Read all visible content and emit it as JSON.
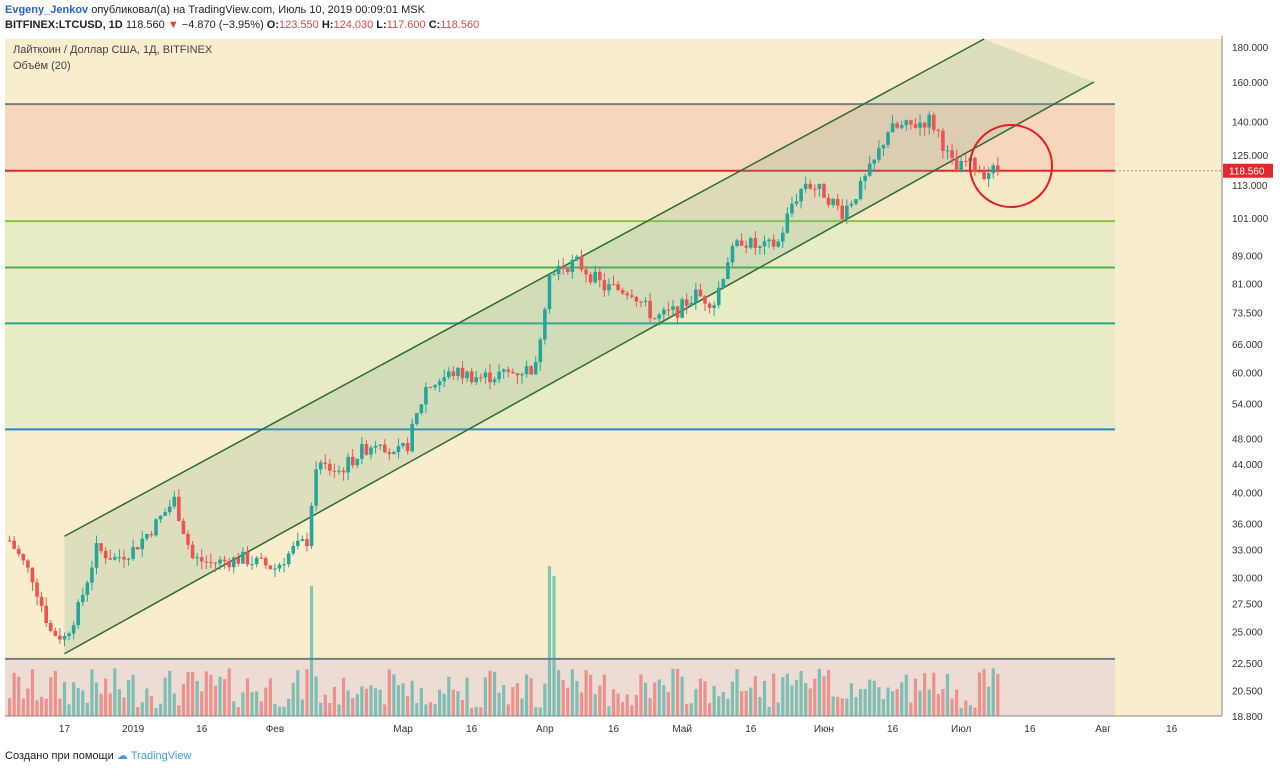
{
  "header": {
    "author": "Evgeny_Jenkov",
    "published_text": "опубликовал(а) на TradingView.com, Июль 10, 2019 00:09:01 MSK",
    "symbol_line": "BITFINEX:LTCUSD, 1D",
    "last": "118.560",
    "change": "−4.870 (−3.95%)",
    "open_label": "O:",
    "open": "123.550",
    "high_label": "H:",
    "high": "124.030",
    "low_label": "L:",
    "low": "117.600",
    "close_label": "C:",
    "close": "118.560"
  },
  "legend": {
    "title": "Лайткоин / Доллар США, 1Д, BITFINEX",
    "volume": "Объём (20)"
  },
  "footer": {
    "created_with": "Создано при помощи",
    "brand": "TradingView"
  },
  "colors": {
    "up": "#26a69a",
    "down": "#ef5350",
    "upper_zone": "#f6d7bd",
    "lower_zone": "#f8edcc",
    "channel": "#2e6b2e"
  },
  "chart_data": {
    "type": "candlestick",
    "symbol": "BITFINEX:LTCUSD",
    "timeframe": "1D",
    "scale": "log",
    "ylim": [
      18.8,
      185
    ],
    "y_ticks": [
      "180.000",
      "160.000",
      "140.000",
      "125.000",
      "113.000",
      "101.000",
      "89.000",
      "81.000",
      "73.500",
      "66.000",
      "60.000",
      "54.000",
      "48.000",
      "44.000",
      "40.000",
      "36.000",
      "33.000",
      "30.000",
      "27.500",
      "25.000",
      "22.500",
      "20.500",
      "18.800"
    ],
    "x_ticks": [
      "17",
      "2019",
      "16",
      "Фев",
      "Мар",
      "16",
      "Апр",
      "16",
      "Май",
      "16",
      "Июн",
      "16",
      "Июл",
      "16",
      "Авг",
      "16"
    ],
    "last_price_label": "118.560",
    "price_path": [
      [
        "2018-12-05",
        34
      ],
      [
        "2018-12-10",
        30
      ],
      [
        "2018-12-14",
        25
      ],
      [
        "2018-12-17",
        24.5
      ],
      [
        "2018-12-20",
        27
      ],
      [
        "2018-12-24",
        33
      ],
      [
        "2018-12-28",
        32
      ],
      [
        "2019-01-01",
        33
      ],
      [
        "2019-01-06",
        36
      ],
      [
        "2019-01-10",
        39
      ],
      [
        "2019-01-14",
        32
      ],
      [
        "2019-01-18",
        31.5
      ],
      [
        "2019-01-25",
        32
      ],
      [
        "2019-02-01",
        31
      ],
      [
        "2019-02-05",
        33
      ],
      [
        "2019-02-08",
        34
      ],
      [
        "2019-02-10",
        44
      ],
      [
        "2019-02-15",
        43
      ],
      [
        "2019-02-20",
        46
      ],
      [
        "2019-02-24",
        48
      ],
      [
        "2019-02-27",
        45
      ],
      [
        "2019-03-02",
        47
      ],
      [
        "2019-03-06",
        57
      ],
      [
        "2019-03-12",
        60
      ],
      [
        "2019-03-18",
        59
      ],
      [
        "2019-03-25",
        60
      ],
      [
        "2019-03-30",
        61
      ],
      [
        "2019-04-02",
        85
      ],
      [
        "2019-04-08",
        87
      ],
      [
        "2019-04-14",
        80
      ],
      [
        "2019-04-20",
        79
      ],
      [
        "2019-04-25",
        72
      ],
      [
        "2019-04-30",
        74
      ],
      [
        "2019-05-04",
        78
      ],
      [
        "2019-05-08",
        76
      ],
      [
        "2019-05-11",
        88
      ],
      [
        "2019-05-14",
        94
      ],
      [
        "2019-05-18",
        91
      ],
      [
        "2019-05-22",
        93
      ],
      [
        "2019-05-25",
        106
      ],
      [
        "2019-05-28",
        114
      ],
      [
        "2019-06-01",
        110
      ],
      [
        "2019-06-05",
        103
      ],
      [
        "2019-06-09",
        112
      ],
      [
        "2019-06-12",
        122
      ],
      [
        "2019-06-15",
        136
      ],
      [
        "2019-06-20",
        138
      ],
      [
        "2019-06-24",
        141
      ],
      [
        "2019-06-26",
        135
      ],
      [
        "2019-06-28",
        125
      ],
      [
        "2019-06-30",
        118
      ],
      [
        "2019-07-02",
        122
      ],
      [
        "2019-07-06",
        118
      ],
      [
        "2019-07-09",
        119
      ]
    ],
    "horizontal_levels": [
      {
        "price": 148.5,
        "color": "#787b86"
      },
      {
        "price": 118.56,
        "color": "#e0282e"
      },
      {
        "price": 100,
        "color": "#8bc34a"
      },
      {
        "price": 85.5,
        "color": "#4caf50"
      },
      {
        "price": 70.8,
        "color": "#26a69a"
      },
      {
        "price": 49.5,
        "color": "#2e86c1"
      },
      {
        "price": 22.8,
        "color": "#787b86"
      }
    ],
    "channel_lines": [
      {
        "from": [
          "2018-12-17",
          34.5
        ],
        "to": [
          "2019-07-06",
          185
        ]
      },
      {
        "from": [
          "2018-12-17",
          23.2
        ],
        "to": [
          "2019-07-30",
          160
        ]
      }
    ],
    "volume": {
      "series_name": "Объём (20)",
      "spikes": [
        [
          "2019-02-09",
          26
        ],
        [
          "2019-04-02",
          30
        ],
        [
          "2019-04-03",
          28
        ]
      ]
    }
  }
}
